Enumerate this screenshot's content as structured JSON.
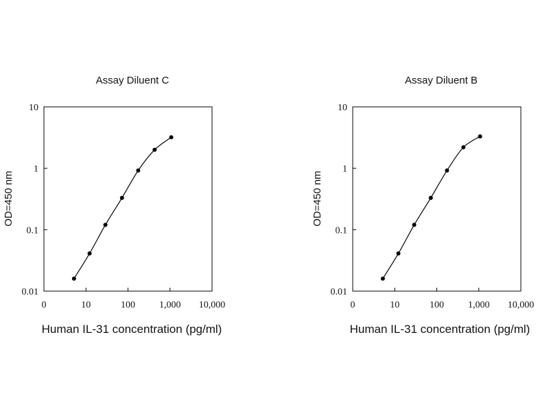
{
  "chart_data": [
    {
      "type": "line",
      "title": "Assay Diluent C",
      "xlabel": "Human IL-31 concentration (pg/ml)",
      "ylabel": "OD=450 nm",
      "xscale": "log",
      "yscale": "log",
      "xlim": [
        1,
        10000
      ],
      "ylim": [
        0.01,
        10
      ],
      "xticks": [
        "0",
        "10",
        "100",
        "1,000",
        "10,000"
      ],
      "yticks": [
        "0.01",
        "0.1",
        "1",
        "10"
      ],
      "grid": false,
      "series": [
        {
          "x": [
            5.2,
            12.2,
            29,
            72,
            175,
            430,
            1070
          ],
          "y": [
            0.016,
            0.041,
            0.12,
            0.33,
            0.92,
            2.0,
            3.2
          ]
        }
      ]
    },
    {
      "type": "line",
      "title": "Assay Diluent B",
      "xlabel": "Human IL-31 concentration (pg/ml)",
      "ylabel": "OD=450 nm",
      "xscale": "log",
      "yscale": "log",
      "xlim": [
        1,
        10000
      ],
      "ylim": [
        0.01,
        10
      ],
      "xticks": [
        "0",
        "10",
        "100",
        "1,000",
        "10,000"
      ],
      "yticks": [
        "0.01",
        "0.1",
        "1",
        "10"
      ],
      "grid": false,
      "series": [
        {
          "x": [
            5.2,
            12.2,
            29,
            72,
            175,
            430,
            1070
          ],
          "y": [
            0.016,
            0.041,
            0.12,
            0.33,
            0.92,
            2.2,
            3.3
          ]
        }
      ]
    }
  ]
}
